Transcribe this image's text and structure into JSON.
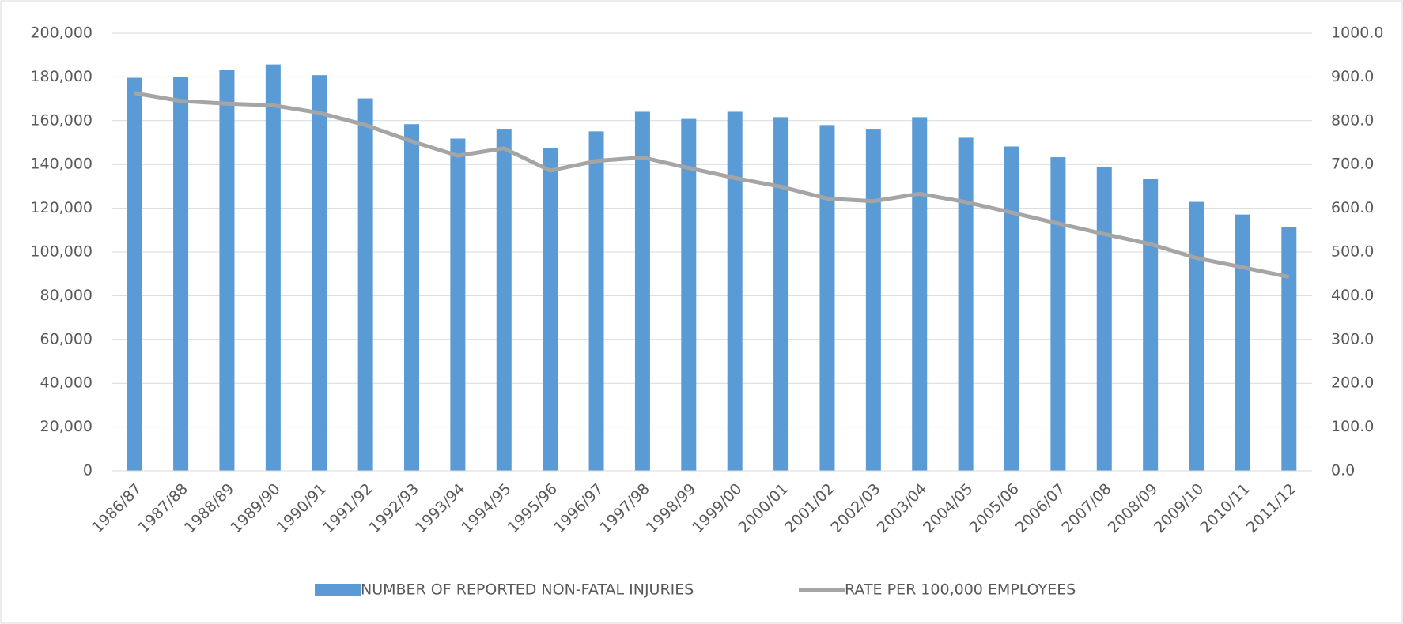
{
  "chart_data": {
    "type": "bar",
    "categories": [
      "1986/87",
      "1987/88",
      "1988/89",
      "1989/90",
      "1990/91",
      "1991/92",
      "1992/93",
      "1993/94",
      "1994/95",
      "1995/96",
      "1996/97",
      "1997/98",
      "1998/99",
      "1999/00",
      "2000/01",
      "2001/02",
      "2002/03",
      "2003/04",
      "2004/05",
      "2005/06",
      "2006/07",
      "2007/08",
      "2008/09",
      "2009/10",
      "2010/11",
      "2011/12"
    ],
    "series": [
      {
        "name": "NUMBER OF REPORTED NON-FATAL INJURIES",
        "type": "bar",
        "color": "#5b9bd5",
        "values": [
          179600,
          180000,
          183300,
          185700,
          180800,
          170200,
          158400,
          151800,
          156300,
          147300,
          155100,
          164100,
          160800,
          164100,
          161600,
          158000,
          156300,
          161600,
          152200,
          148200,
          143300,
          138800,
          133500,
          122900,
          117100,
          111400
        ]
      },
      {
        "name": "RATE PER 100,000 EMPLOYEES",
        "type": "line",
        "axis": "y2",
        "color": "#a5a5a5",
        "values": [
          863,
          845,
          839,
          835,
          818,
          790,
          753,
          720,
          737,
          686,
          708,
          716,
          692,
          669,
          649,
          622,
          616,
          633,
          614,
          590,
          565,
          541,
          518,
          486,
          465,
          443
        ]
      }
    ],
    "ylim": [
      0,
      200000
    ],
    "yticks": [
      0,
      {
        "value": 20000,
        "label": "20,000"
      },
      {
        "value": 40000,
        "label": "40,000"
      },
      {
        "value": 60000,
        "label": "60,000"
      },
      {
        "value": 80000,
        "label": "80,000"
      },
      {
        "value": 100000,
        "label": "100,000"
      },
      {
        "value": 120000,
        "label": "120,000"
      },
      {
        "value": 140000,
        "label": "140,000"
      },
      {
        "value": 160000,
        "label": "160,000"
      },
      {
        "value": 180000,
        "label": "180,000"
      },
      {
        "value": 200000,
        "label": "200,000"
      }
    ],
    "y2lim": [
      0,
      1000
    ],
    "y2ticks": [
      {
        "value": 0,
        "label": "0.0"
      },
      {
        "value": 100,
        "label": "100.0"
      },
      {
        "value": 200,
        "label": "200.0"
      },
      {
        "value": 300,
        "label": "300.0"
      },
      {
        "value": 400,
        "label": "400.0"
      },
      {
        "value": 500,
        "label": "500.0"
      },
      {
        "value": 600,
        "label": "600.0"
      },
      {
        "value": 700,
        "label": "700.0"
      },
      {
        "value": 800,
        "label": "800.0"
      },
      {
        "value": 900,
        "label": "900.0"
      },
      {
        "value": 1000,
        "label": "1000.0"
      }
    ],
    "grid": true,
    "legend": "bottom"
  }
}
